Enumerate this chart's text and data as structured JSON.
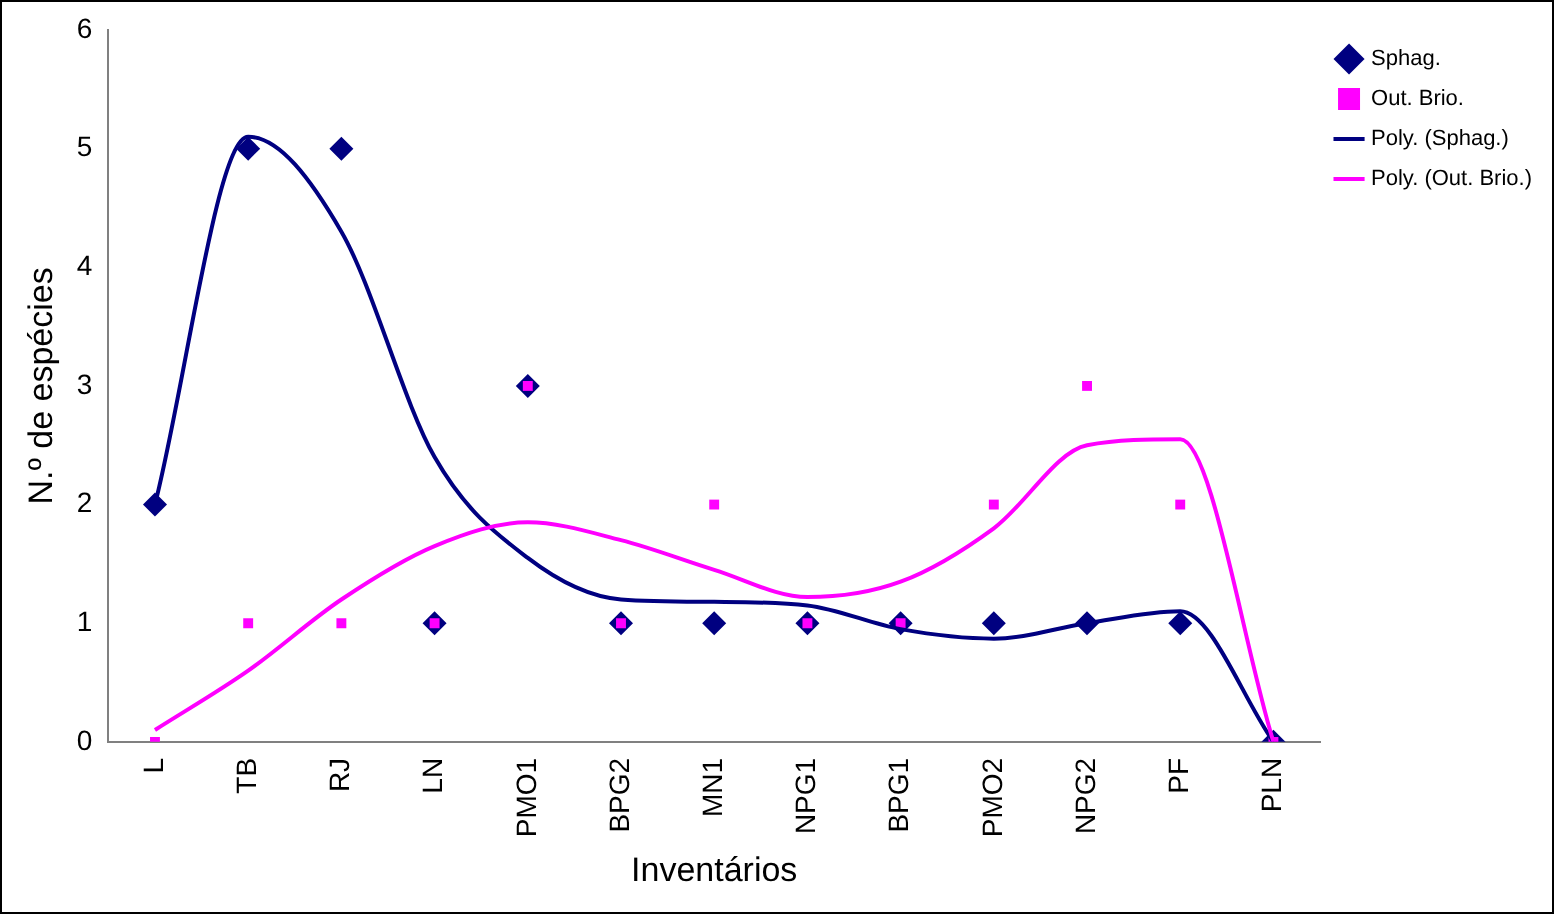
{
  "chart_data": {
    "type": "scatter",
    "xlabel": "Inventários",
    "ylabel": "N.º de espécies",
    "categories": [
      "L",
      "TB",
      "RJ",
      "LN",
      "PMO1",
      "BPG2",
      "MN1",
      "NPG1",
      "BPG1",
      "PMO2",
      "NPG2",
      "PF",
      "PLN"
    ],
    "series": [
      {
        "name": "Sphag.",
        "color": "#000080",
        "marker": "diamond",
        "values": [
          2,
          5,
          5,
          1,
          3,
          1,
          1,
          1,
          1,
          1,
          1,
          1,
          0
        ]
      },
      {
        "name": "Out. Brio.",
        "color": "#ff00ff",
        "marker": "square",
        "values": [
          0,
          1,
          1,
          1,
          3,
          1,
          2,
          1,
          1,
          2,
          3,
          2,
          0
        ]
      },
      {
        "name": "Poly. (Sphag.)",
        "type": "line",
        "marker": "none",
        "color": "#000080",
        "values": [
          2.0,
          5.1,
          4.3,
          2.4,
          1.55,
          1.2,
          1.18,
          1.15,
          0.95,
          0.87,
          1.0,
          1.1,
          0
        ]
      },
      {
        "name": "Poly. (Out. Brio.)",
        "type": "line",
        "marker": "none",
        "color": "#ff00ff",
        "values": [
          0.1,
          0.6,
          1.2,
          1.65,
          1.85,
          1.7,
          1.45,
          1.22,
          1.35,
          1.8,
          2.5,
          2.55,
          0
        ]
      }
    ],
    "ylim": [
      0,
      6
    ],
    "yticks": [
      0,
      1,
      2,
      3,
      4,
      5,
      6
    ],
    "grid": false,
    "legend": "right"
  }
}
